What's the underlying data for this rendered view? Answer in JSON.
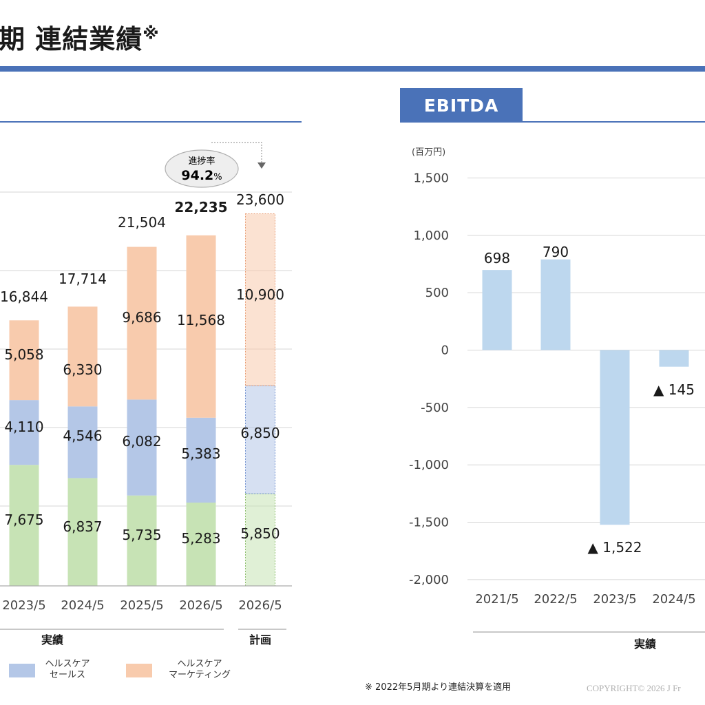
{
  "page": {
    "title": "期 連結業績",
    "title_mark": "※",
    "footnote": "※ 2022年5月期より連結決算を適用",
    "copyright": "COPYRIGHT© 2026 J Fr"
  },
  "chart_data": [
    {
      "type": "bar",
      "stacked": true,
      "categories": [
        "2023/5",
        "2024/5",
        "2025/5",
        "2026/5",
        "2026/5"
      ],
      "series": [
        {
          "name": "",
          "values": [
            7675,
            6837,
            5735,
            5283,
            5850
          ],
          "color": "#c7e3b5"
        },
        {
          "name": "ヘルスケア セールス",
          "values": [
            4110,
            4546,
            6082,
            5383,
            6850
          ],
          "color": "#b4c7e7"
        },
        {
          "name": "ヘルスケア マーケティング",
          "values": [
            5058,
            6330,
            9686,
            11568,
            10900
          ],
          "color": "#f8cbad"
        }
      ],
      "totals": [
        "16,844",
        "17,714",
        "21,504",
        "22,235",
        "23,600"
      ],
      "segment_labels": [
        [
          "7,675",
          "4,110",
          "5,058"
        ],
        [
          "6,837",
          "4,546",
          "6,330"
        ],
        [
          "5,735",
          "6,082",
          "9,686"
        ],
        [
          "5,283",
          "5,383",
          "11,568"
        ],
        [
          "5,850",
          "6,850",
          "10,900"
        ]
      ],
      "plan_index": 4,
      "highlight_index": 3,
      "progress": {
        "label": "進捗率",
        "value": "94.2",
        "unit": "%"
      },
      "groups": [
        {
          "label": "実績"
        },
        {
          "label": "計画"
        }
      ],
      "legend": [
        {
          "label_lines": [
            "ヘルスケア",
            "セールス"
          ],
          "color": "#b4c7e7"
        },
        {
          "label_lines": [
            "ヘルスケア",
            "マーケティング"
          ],
          "color": "#f8cbad"
        }
      ],
      "grid": true
    },
    {
      "type": "bar",
      "title": "EBITDA",
      "unit": "(百万円)",
      "categories": [
        "2021/5",
        "2022/5",
        "2023/5",
        "2024/5"
      ],
      "values": [
        698,
        790,
        -1522,
        -145
      ],
      "labels": [
        "698",
        "790",
        "▲ 1,522",
        "▲ 145"
      ],
      "yticks": [
        "1,500",
        "1,000",
        "500",
        "0",
        "-500",
        "-1,000",
        "-1,500",
        "-2,000"
      ],
      "ylim": [
        -2000,
        1500
      ],
      "group_label": "実績",
      "color": "#bdd7ee",
      "grid": true
    }
  ]
}
